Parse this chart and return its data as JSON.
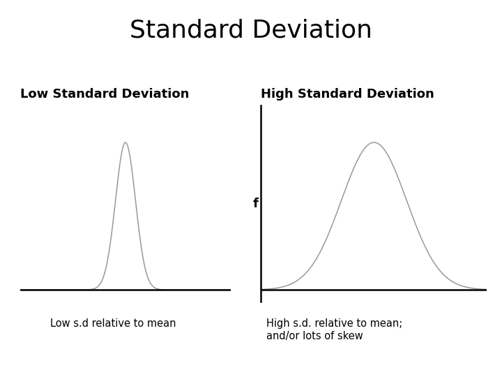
{
  "title": "Standard Deviation",
  "title_fontsize": 26,
  "left_label": "Low Standard Deviation",
  "right_label": "High Standard Deviation",
  "left_sublabel": "Low s.d relative to mean",
  "right_sublabel": "High s.d. relative to mean;\nand/or lots of skew",
  "label_fontsize": 13,
  "sublabel_fontsize": 10.5,
  "curve_color": "#999999",
  "axis_color": "#000000",
  "background_color": "#ffffff",
  "low_sd": 0.38,
  "high_sd": 1.3,
  "f_label": "f"
}
